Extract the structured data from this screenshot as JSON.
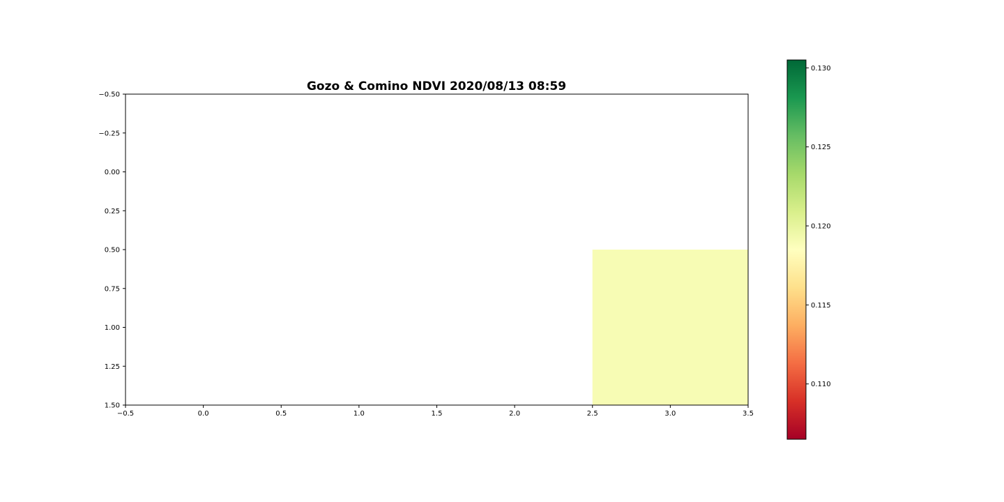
{
  "chart_data": {
    "type": "heatmap",
    "title": "Gozo & Comino NDVI 2020/08/13 08:59",
    "xlim": [
      -0.5,
      3.5
    ],
    "ylim": [
      1.5,
      -0.5
    ],
    "y_inverted": true,
    "x_ticks": [
      "-0.5",
      "0.0",
      "0.5",
      "1.0",
      "1.5",
      "2.0",
      "2.5",
      "3.0",
      "3.5"
    ],
    "y_ticks": [
      "-0.50",
      "-0.25",
      "0.00",
      "0.25",
      "0.50",
      "0.75",
      "1.00",
      "1.25",
      "1.50"
    ],
    "grid": false,
    "rows": 2,
    "cols": 4,
    "values": [
      [
        null,
        null,
        null,
        null
      ],
      [
        null,
        null,
        null,
        0.119
      ]
    ],
    "colormap": "RdYlGn",
    "colorbar": {
      "min": 0.1065,
      "max": 0.1305,
      "ticks": [
        "0.110",
        "0.115",
        "0.120",
        "0.125",
        "0.130"
      ],
      "stops": [
        "#a50026",
        "#d73027",
        "#f46d43",
        "#fdae61",
        "#fee08b",
        "#ffffbf",
        "#d9ef8b",
        "#a6d96a",
        "#66bd63",
        "#1a9850",
        "#006837"
      ]
    }
  }
}
